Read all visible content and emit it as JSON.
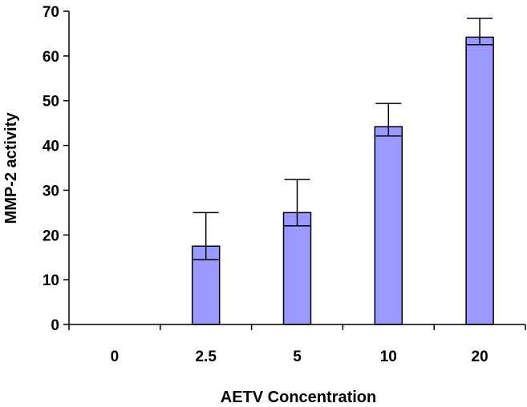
{
  "chart_data": {
    "type": "bar",
    "categories": [
      "0",
      "2.5",
      "5",
      "10",
      "20"
    ],
    "values": [
      0,
      17.5,
      25,
      44.2,
      64.2
    ],
    "error_upper": [
      0,
      25,
      32.4,
      49.4,
      68.4
    ],
    "xlabel": "AETV Concentration",
    "ylabel": "MMP-2 activity",
    "ylim": [
      0,
      70
    ],
    "yticks": [
      "0",
      "10",
      "20",
      "30",
      "40",
      "50",
      "60",
      "70"
    ],
    "grid": false,
    "colors": {
      "bar": "#9999ff",
      "outline": "#000000"
    }
  }
}
